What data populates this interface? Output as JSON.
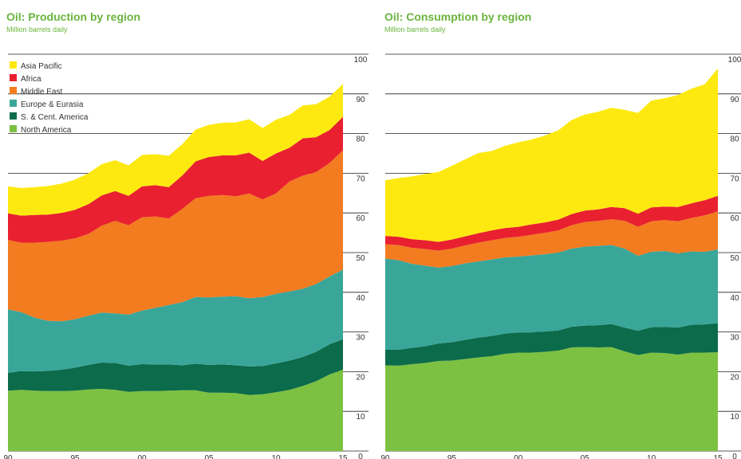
{
  "chart_data": [
    {
      "type": "stacked_area",
      "title": "Oil: Production by region",
      "subtitle": "Million barrels daily",
      "x": [
        1990,
        1991,
        1992,
        1993,
        1994,
        1995,
        1996,
        1997,
        1998,
        1999,
        2000,
        2001,
        2002,
        2003,
        2004,
        2005,
        2006,
        2007,
        2008,
        2009,
        2010,
        2011,
        2012,
        2013,
        2014,
        2015
      ],
      "xlim": [
        1990,
        2015
      ],
      "xticks": [
        {
          "value": 1990,
          "label": "90"
        },
        {
          "value": 1995,
          "label": "95"
        },
        {
          "value": 2000,
          "label": "00"
        },
        {
          "value": 2005,
          "label": "05"
        },
        {
          "value": 2010,
          "label": "10"
        },
        {
          "value": 2015,
          "label": "15"
        }
      ],
      "ylim": [
        0,
        100
      ],
      "yticks": [
        0,
        10,
        20,
        30,
        40,
        50,
        60,
        70,
        80,
        90,
        100
      ],
      "grid": true,
      "legend": "upper left",
      "series": [
        {
          "name": "North America",
          "color": "#7dc142",
          "values": [
            15.2,
            15.4,
            15.2,
            15.1,
            15.1,
            15.2,
            15.5,
            15.7,
            15.4,
            14.9,
            15.1,
            15.1,
            15.2,
            15.3,
            15.3,
            14.7,
            14.7,
            14.6,
            14.1,
            14.3,
            14.8,
            15.4,
            16.4,
            17.6,
            19.3,
            20.5
          ]
        },
        {
          "name": "S. & Cent. America",
          "color": "#0b6b4a",
          "values": [
            4.5,
            4.7,
            4.8,
            5.1,
            5.4,
            5.8,
            6.2,
            6.6,
            6.8,
            6.6,
            6.8,
            6.7,
            6.6,
            6.3,
            6.7,
            7.0,
            7.1,
            7.0,
            7.2,
            7.1,
            7.3,
            7.4,
            7.3,
            7.4,
            7.6,
            7.7
          ]
        },
        {
          "name": "Europe & Eurasia",
          "color": "#3aa69a",
          "values": [
            16.0,
            14.9,
            13.6,
            12.6,
            12.2,
            12.2,
            12.4,
            12.6,
            12.5,
            12.9,
            13.5,
            14.3,
            15.0,
            15.9,
            16.8,
            17.0,
            17.1,
            17.4,
            17.2,
            17.4,
            17.5,
            17.4,
            17.2,
            17.1,
            17.1,
            17.5
          ]
        },
        {
          "name": "Middle East",
          "color": "#f37b20",
          "values": [
            17.5,
            17.5,
            18.9,
            19.9,
            20.3,
            20.4,
            20.6,
            21.9,
            23.3,
            22.5,
            23.5,
            23.0,
            21.8,
            23.5,
            24.9,
            25.6,
            25.6,
            25.2,
            26.4,
            24.6,
            25.3,
            27.7,
            28.5,
            28.2,
            28.6,
            30.1
          ]
        },
        {
          "name": "Africa",
          "color": "#e8202f",
          "values": [
            6.7,
            6.8,
            7.0,
            6.9,
            7.0,
            7.2,
            7.5,
            7.6,
            7.5,
            7.4,
            7.8,
            7.9,
            7.9,
            8.4,
            9.3,
            9.8,
            10.0,
            10.3,
            10.3,
            9.7,
            10.1,
            8.5,
            9.4,
            8.8,
            8.3,
            8.4
          ]
        },
        {
          "name": "Asia Pacific",
          "color": "#fde910",
          "values": [
            6.8,
            7.0,
            7.0,
            7.2,
            7.4,
            7.6,
            7.8,
            7.9,
            7.8,
            7.7,
            7.9,
            7.8,
            7.9,
            7.9,
            8.0,
            8.1,
            8.2,
            8.3,
            8.4,
            8.3,
            8.5,
            8.3,
            8.3,
            8.3,
            8.4,
            8.3
          ]
        }
      ]
    },
    {
      "type": "stacked_area",
      "title": "Oil: Consumption by region",
      "subtitle": "Million barrels daily",
      "x": [
        1990,
        1991,
        1992,
        1993,
        1994,
        1995,
        1996,
        1997,
        1998,
        1999,
        2000,
        2001,
        2002,
        2003,
        2004,
        2005,
        2006,
        2007,
        2008,
        2009,
        2010,
        2011,
        2012,
        2013,
        2014,
        2015
      ],
      "xlim": [
        1990,
        2015
      ],
      "xticks": [
        {
          "value": 1990,
          "label": "90"
        },
        {
          "value": 1995,
          "label": "95"
        },
        {
          "value": 2000,
          "label": "00"
        },
        {
          "value": 2005,
          "label": "05"
        },
        {
          "value": 2010,
          "label": "10"
        },
        {
          "value": 2015,
          "label": "15"
        }
      ],
      "ylim": [
        0,
        100
      ],
      "yticks": [
        0,
        10,
        20,
        30,
        40,
        50,
        60,
        70,
        80,
        90,
        100
      ],
      "grid": true,
      "series": [
        {
          "color": "#7dc142",
          "values": [
            21.6,
            21.5,
            21.9,
            22.2,
            22.7,
            22.8,
            23.2,
            23.6,
            23.9,
            24.5,
            24.8,
            24.8,
            25.0,
            25.3,
            26.1,
            26.2,
            26.1,
            26.2,
            25.1,
            24.2,
            24.8,
            24.7,
            24.3,
            24.8,
            24.8,
            24.9
          ]
        },
        {
          "color": "#0b6b4a",
          "values": [
            3.9,
            4.0,
            4.1,
            4.2,
            4.4,
            4.6,
            4.8,
            5.0,
            5.1,
            5.1,
            5.1,
            5.1,
            5.1,
            5.1,
            5.2,
            5.4,
            5.6,
            5.8,
            6.0,
            6.1,
            6.4,
            6.6,
            6.8,
            7.0,
            7.1,
            7.3
          ]
        },
        {
          "color": "#3aa69a",
          "values": [
            23.0,
            22.6,
            21.2,
            20.3,
            19.1,
            19.2,
            19.3,
            19.2,
            19.3,
            19.2,
            19.1,
            19.4,
            19.5,
            19.6,
            19.7,
            19.9,
            20.0,
            19.9,
            19.9,
            18.9,
            19.0,
            19.1,
            18.7,
            18.5,
            18.3,
            18.6
          ]
        },
        {
          "color": "#f37b20",
          "values": [
            3.6,
            3.8,
            4.0,
            4.2,
            4.3,
            4.4,
            4.5,
            4.7,
            4.8,
            4.9,
            5.0,
            5.2,
            5.4,
            5.6,
            5.9,
            6.2,
            6.3,
            6.5,
            7.0,
            7.3,
            7.7,
            7.8,
            8.1,
            8.4,
            9.2,
            9.6
          ]
        },
        {
          "color": "#e8202f",
          "values": [
            2.1,
            2.1,
            2.2,
            2.2,
            2.2,
            2.3,
            2.3,
            2.4,
            2.5,
            2.5,
            2.5,
            2.6,
            2.6,
            2.7,
            2.8,
            2.9,
            2.9,
            3.1,
            3.2,
            3.3,
            3.5,
            3.4,
            3.6,
            3.7,
            3.8,
            3.9
          ]
        },
        {
          "color": "#fde910",
          "values": [
            14.0,
            14.8,
            15.8,
            16.7,
            17.6,
            18.6,
            19.4,
            20.2,
            20.0,
            20.7,
            21.3,
            21.4,
            21.9,
            22.5,
            23.7,
            24.2,
            24.6,
            25.0,
            24.8,
            25.4,
            26.9,
            27.3,
            28.2,
            28.9,
            29.2,
            32.1
          ]
        }
      ]
    }
  ]
}
